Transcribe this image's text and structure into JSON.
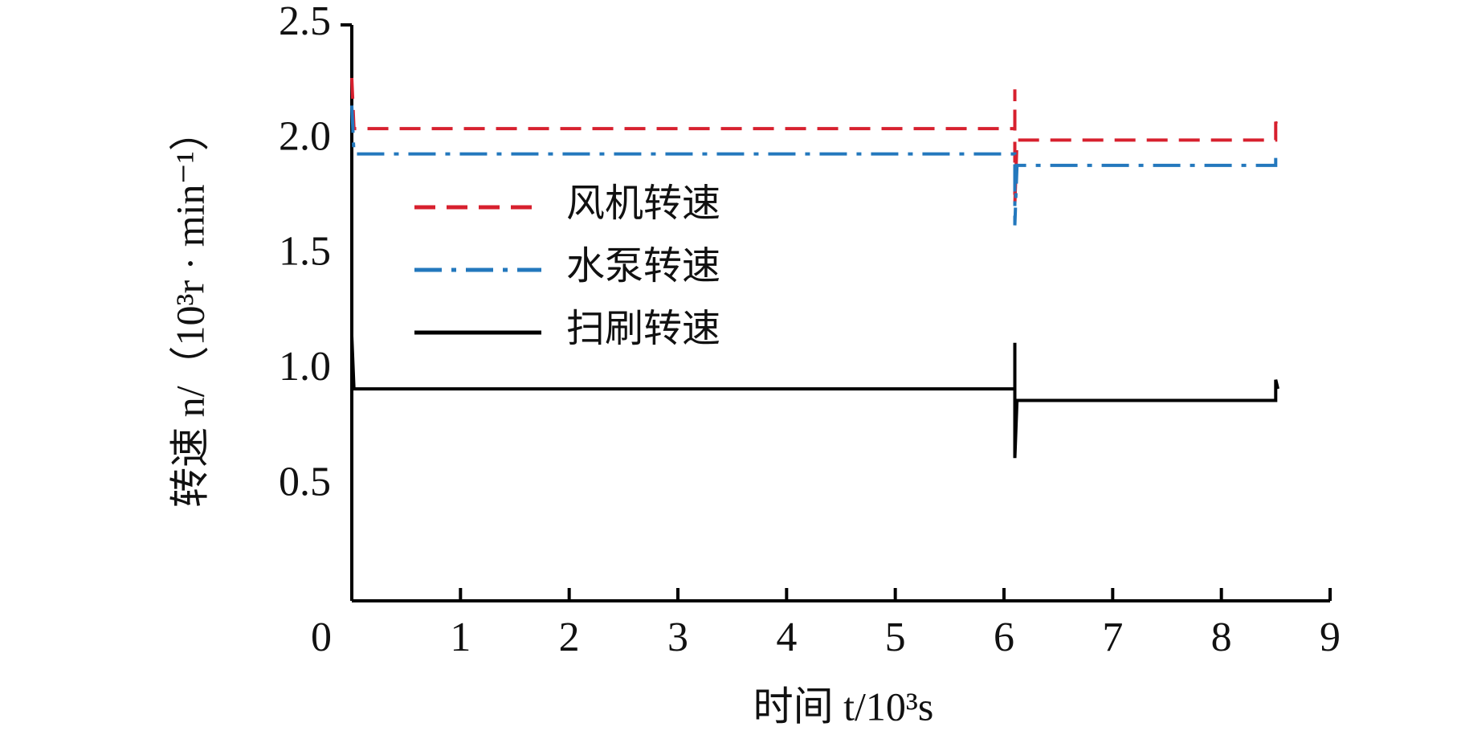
{
  "chart_data": {
    "type": "line",
    "xlabel": "时间 t/10³s",
    "ylabel": "转速 n/（10³r · min⁻¹）",
    "xlim": [
      0,
      9
    ],
    "xticks": [
      0,
      1,
      2,
      3,
      4,
      5,
      6,
      7,
      8,
      9
    ],
    "ylim": [
      0,
      2.5
    ],
    "yticks": [
      {
        "value": 0.5,
        "label": "0.5"
      },
      {
        "value": 1,
        "label": "1.0"
      },
      {
        "value": 1.5,
        "label": "1.5"
      },
      {
        "value": 2,
        "label": "2.0"
      },
      {
        "value": 2.5,
        "label": "2.5"
      }
    ],
    "series": [
      {
        "name": "风机转速",
        "color": "#d7202e",
        "dash": "dashed",
        "x": [
          0,
          0.02,
          6.1,
          6.1,
          6.1,
          6.12,
          8.5,
          8.5,
          8.52
        ],
        "values": [
          2.27,
          2.05,
          2.05,
          2.22,
          1.72,
          2.0,
          2.0,
          2.08,
          2.05
        ]
      },
      {
        "name": "水泵转速",
        "color": "#2378bd",
        "dash": "dashdot",
        "x": [
          0,
          0.02,
          6.1,
          6.1,
          6.12,
          8.5,
          8.5,
          8.52
        ],
        "values": [
          2.15,
          1.94,
          1.94,
          1.63,
          1.89,
          1.89,
          1.95,
          1.96
        ]
      },
      {
        "name": "扫刷转速",
        "color": "#000000",
        "dash": "solid",
        "x": [
          0,
          0.02,
          6.1,
          6.1,
          6.1,
          6.12,
          8.5,
          8.5,
          8.52
        ],
        "values": [
          1.15,
          0.92,
          0.92,
          1.12,
          0.62,
          0.87,
          0.87,
          0.96,
          0.92
        ]
      }
    ]
  }
}
